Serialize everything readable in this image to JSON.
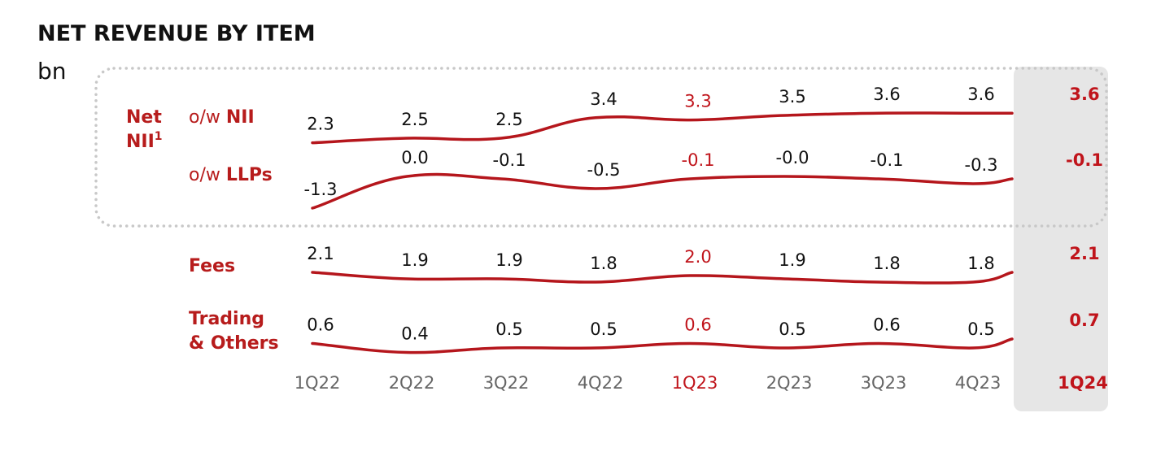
{
  "title": "NET REVENUE BY ITEM",
  "unit": "bn",
  "group_label": {
    "line1": "Net",
    "line2": "NII",
    "sup": "1"
  },
  "row_labels": {
    "nii": {
      "prefix": "o/w ",
      "bold": "NII"
    },
    "llps": {
      "prefix": "o/w ",
      "bold": "LLPs"
    },
    "fees": "Fees",
    "trading_line1": "Trading",
    "trading_line2": "& Others"
  },
  "colors": {
    "accent": "#c0141b",
    "line": "#b5161c",
    "text": "#111111",
    "axis": "#666666",
    "highlight_bg": "#e6e6e6",
    "group_border": "#c8c8c8"
  },
  "chart_data": {
    "type": "line",
    "title": "NET REVENUE BY ITEM",
    "unit": "bn",
    "categories": [
      "1Q22",
      "2Q22",
      "3Q22",
      "4Q22",
      "1Q23",
      "2Q23",
      "3Q23",
      "4Q23",
      "1Q24"
    ],
    "highlight_categories": [
      "1Q23",
      "1Q24"
    ],
    "current_period": "1Q24",
    "series": [
      {
        "name": "o/w NII",
        "values": [
          2.3,
          2.5,
          2.5,
          3.4,
          3.3,
          3.5,
          3.6,
          3.6,
          3.6
        ],
        "labels": [
          "2.3",
          "2.5",
          "2.5",
          "3.4",
          "3.3",
          "3.5",
          "3.6",
          "3.6",
          "3.6"
        ]
      },
      {
        "name": "o/w LLPs",
        "values": [
          -1.3,
          0.0,
          -0.1,
          -0.5,
          -0.1,
          -0.0,
          -0.1,
          -0.3,
          -0.1
        ],
        "labels": [
          "-1.3",
          "0.0",
          "-0.1",
          "-0.5",
          "-0.1",
          "-0.0",
          "-0.1",
          "-0.3",
          "-0.1"
        ]
      },
      {
        "name": "Fees",
        "values": [
          2.1,
          1.9,
          1.9,
          1.8,
          2.0,
          1.9,
          1.8,
          1.8,
          2.1
        ],
        "labels": [
          "2.1",
          "1.9",
          "1.9",
          "1.8",
          "2.0",
          "1.9",
          "1.8",
          "1.8",
          "2.1"
        ]
      },
      {
        "name": "Trading & Others",
        "values": [
          0.6,
          0.4,
          0.5,
          0.5,
          0.6,
          0.5,
          0.6,
          0.5,
          0.7
        ],
        "labels": [
          "0.6",
          "0.4",
          "0.5",
          "0.5",
          "0.6",
          "0.5",
          "0.6",
          "0.5",
          "0.7"
        ]
      }
    ]
  }
}
